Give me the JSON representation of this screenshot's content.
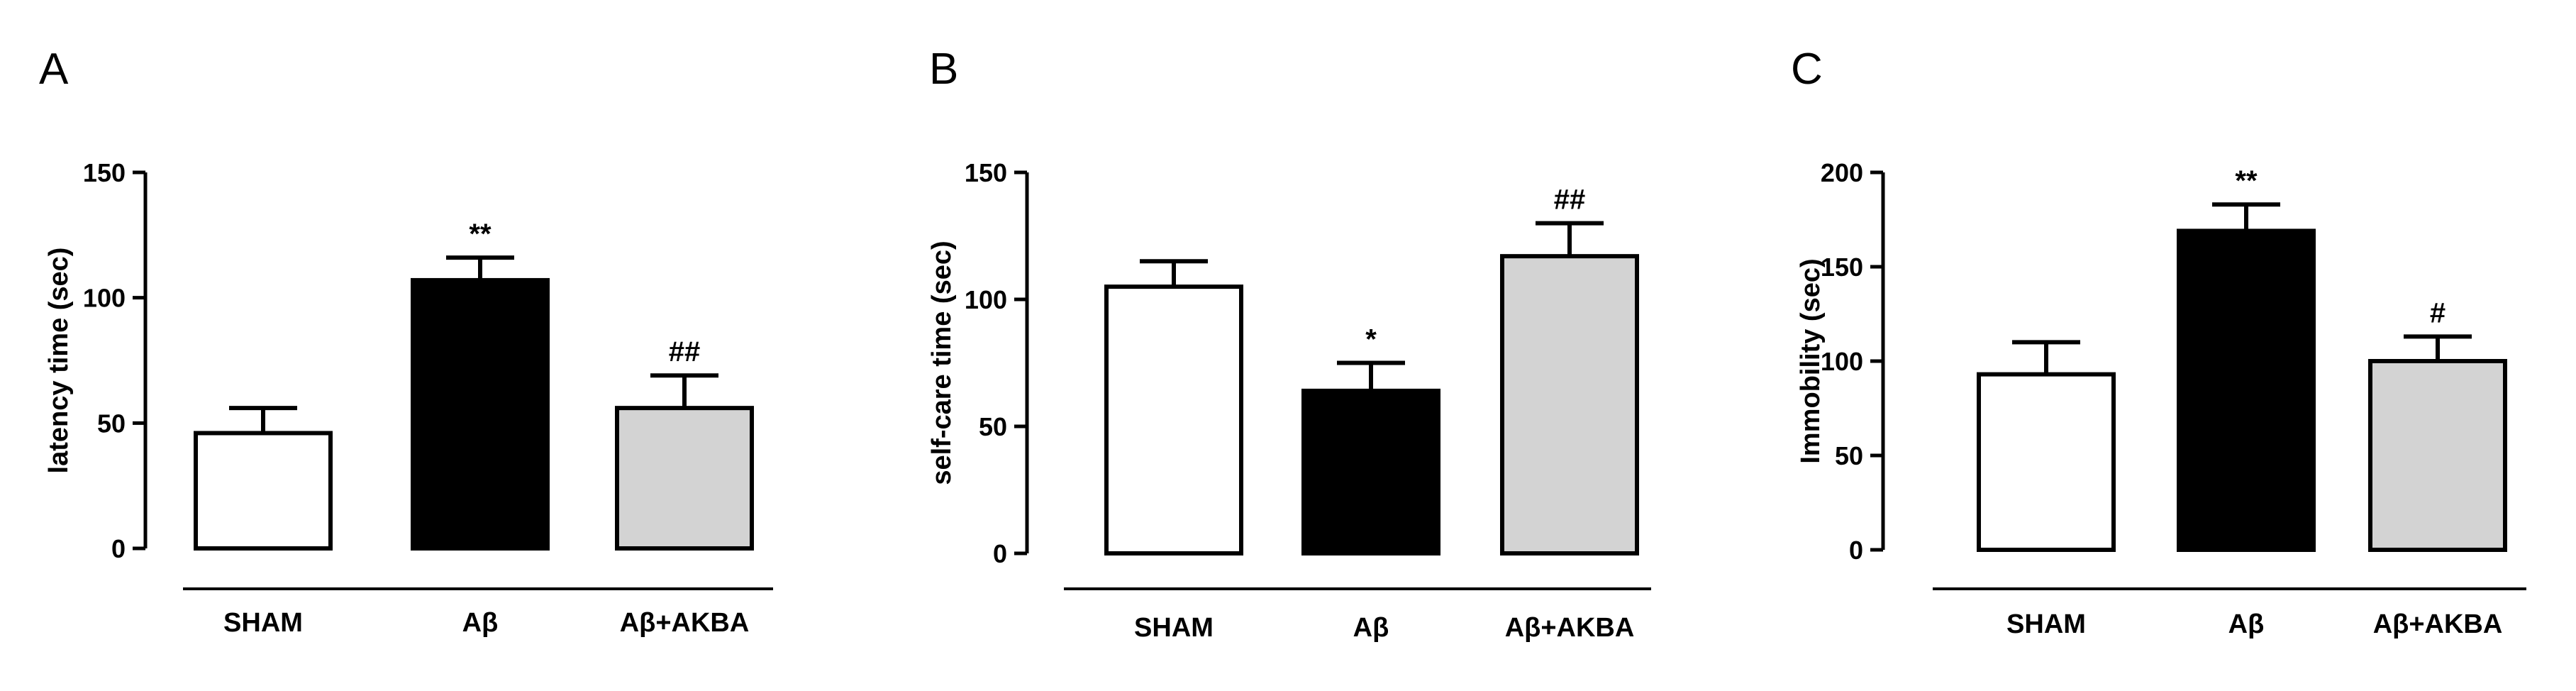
{
  "chart_data": [
    {
      "type": "bar",
      "panel": "A",
      "ylabel": "latency time (sec)",
      "ylim": [
        0,
        150
      ],
      "yticks": [
        0,
        50,
        100,
        150
      ],
      "categories": [
        "SHAM",
        "Aβ",
        "Aβ+AKBA"
      ],
      "values": [
        46,
        107,
        56
      ],
      "errors": [
        10,
        9,
        13
      ],
      "bar_colors": [
        "#ffffff",
        "#000000",
        "#d3d3d3"
      ],
      "significance": [
        "",
        "**",
        "##"
      ]
    },
    {
      "type": "bar",
      "panel": "B",
      "ylabel": "self-care time (sec)",
      "ylim": [
        0,
        150
      ],
      "yticks": [
        0,
        50,
        100,
        150
      ],
      "categories": [
        "SHAM",
        "Aβ",
        "Aβ+AKBA"
      ],
      "values": [
        105,
        64,
        117
      ],
      "errors": [
        10,
        11,
        13
      ],
      "bar_colors": [
        "#ffffff",
        "#000000",
        "#d3d3d3"
      ],
      "significance": [
        "",
        "*",
        "##"
      ]
    },
    {
      "type": "bar",
      "panel": "C",
      "ylabel": "Immobility (sec)",
      "ylim": [
        0,
        200
      ],
      "yticks": [
        0,
        50,
        100,
        150,
        200
      ],
      "categories": [
        "SHAM",
        "Aβ",
        "Aβ+AKBA"
      ],
      "values": [
        93,
        169,
        100
      ],
      "errors": [
        17,
        14,
        13
      ],
      "bar_colors": [
        "#ffffff",
        "#000000",
        "#d3d3d3"
      ],
      "significance": [
        "",
        "**",
        "#"
      ]
    }
  ]
}
